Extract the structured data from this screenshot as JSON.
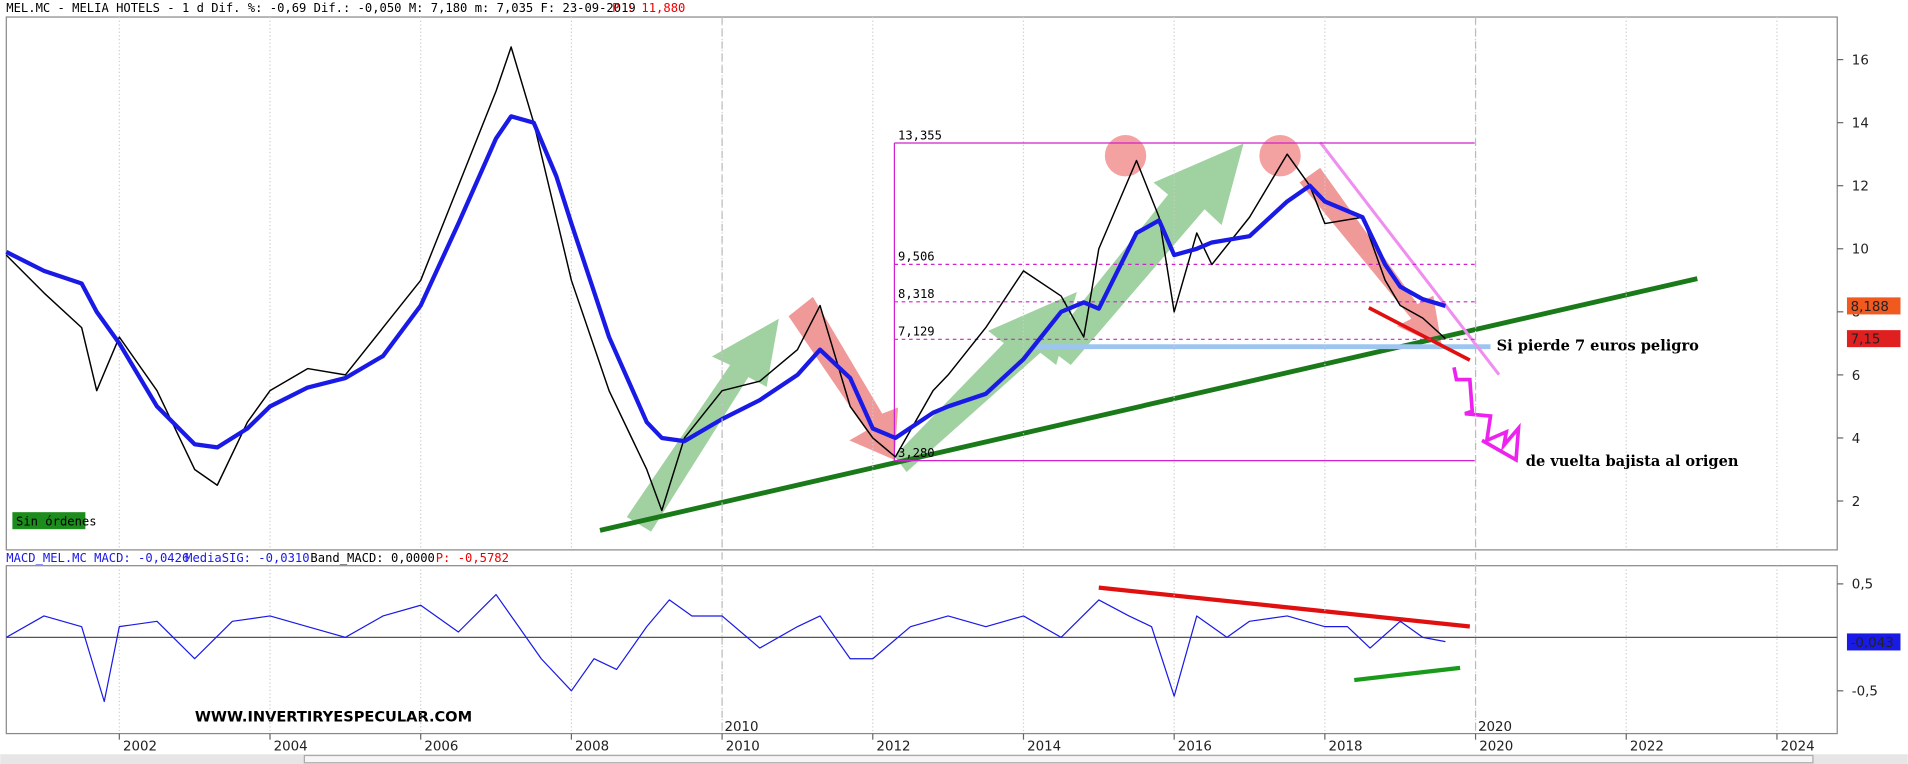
{
  "header": {
    "main": "MEL.MC - MELIA HOTELS - 1 d Dif. %: -0,69 Dif.: -0,050 M: 7,180 m: 7,035 F: 23-09-2019",
    "p": "P : 11,880",
    "macd": "MACD_MEL.MC MACD: -0,0426",
    "sig": "MediaSIG: -0,0310",
    "band": "Band_MACD: 0,0000",
    "macd_p": "P: -0,5782"
  },
  "annotations": {
    "loss": "Si pierde 7 euros peligro",
    "origin": "de vuelta bajista al origen",
    "orders": "Sin órdenes",
    "site": "WWW.INVERTIRYESPECULAR.COM"
  },
  "chart_data": [
    {
      "type": "line",
      "xlim": [
        2000.5,
        2024.8
      ],
      "ylim": [
        0.45,
        17.35
      ],
      "xticks": [
        2002,
        2004,
        2006,
        2008,
        2010,
        2012,
        2014,
        2016,
        2018,
        2020,
        2022,
        2024
      ],
      "yticks": [
        2,
        4,
        6,
        8,
        10,
        12,
        14,
        16
      ],
      "x": [
        2000.5,
        2001,
        2001.5,
        2001.7,
        2002,
        2002.5,
        2003,
        2003.3,
        2003.7,
        2004,
        2004.5,
        2005,
        2005.5,
        2006,
        2006.5,
        2007,
        2007.2,
        2007.5,
        2007.8,
        2008,
        2008.5,
        2009,
        2009.2,
        2009.5,
        2010,
        2010.5,
        2011,
        2011.3,
        2011.7,
        2012,
        2012.3,
        2012.8,
        2013,
        2013.5,
        2014,
        2014.5,
        2014.8,
        2015,
        2015.5,
        2015.8,
        2016,
        2016.3,
        2016.5,
        2017,
        2017.5,
        2017.8,
        2018,
        2018.5,
        2018.8,
        2019,
        2019.3,
        2019.6
      ],
      "series": [
        {
          "color": "#000000",
          "values": [
            9.8,
            8.6,
            7.5,
            5.5,
            7.2,
            5.5,
            3.0,
            2.5,
            4.5,
            5.5,
            6.2,
            6.0,
            7.5,
            9.0,
            12,
            15,
            16.4,
            14,
            11,
            9,
            5.5,
            3.0,
            1.7,
            4.0,
            5.5,
            5.8,
            6.8,
            8.2,
            5.0,
            4.0,
            3.4,
            5.5,
            6.0,
            7.5,
            9.3,
            8.5,
            7.2,
            10,
            12.8,
            11,
            8,
            10.5,
            9.5,
            11,
            13,
            12,
            10.8,
            11,
            9,
            8.2,
            7.8,
            7.15
          ]
        },
        {
          "color": "#1a1ae6",
          "values": [
            9.9,
            9.3,
            8.9,
            8.0,
            7.0,
            5.0,
            3.8,
            3.7,
            4.3,
            5.0,
            5.6,
            5.9,
            6.6,
            8.2,
            10.8,
            13.5,
            14.2,
            14.0,
            12.3,
            10.8,
            7.2,
            4.5,
            4.0,
            3.9,
            4.6,
            5.2,
            6.0,
            6.8,
            5.9,
            4.3,
            4.0,
            4.8,
            5.0,
            5.4,
            6.5,
            8.0,
            8.3,
            8.1,
            10.5,
            10.9,
            9.8,
            10.0,
            10.2,
            10.4,
            11.5,
            12.0,
            11.5,
            11.0,
            9.5,
            8.8,
            8.4,
            8.188
          ]
        }
      ],
      "levels": [
        {
          "value": 13.355,
          "label": "13,355"
        },
        {
          "value": 9.506,
          "label": "9,506"
        },
        {
          "value": 8.318,
          "label": "8,318"
        },
        {
          "value": 7.129,
          "label": "7,129"
        },
        {
          "value": 3.28,
          "label": "3,280"
        }
      ],
      "markers": [
        {
          "value": 8.188,
          "label": "8,188",
          "color": "#f05a1e"
        },
        {
          "value": 7.15,
          "label": "7,15",
          "color": "#e02020"
        }
      ]
    },
    {
      "type": "line",
      "xlim": [
        2000.5,
        2024.8
      ],
      "ylim": [
        -0.9,
        0.67
      ],
      "yticks": [
        {
          "value": 0.5,
          "label": "0,5"
        },
        {
          "value": -0.5,
          "label": "-0,5"
        }
      ],
      "period_labels": [
        2010,
        2020
      ],
      "x": [
        2000.5,
        2001,
        2001.5,
        2001.8,
        2002,
        2002.5,
        2003,
        2003.5,
        2004,
        2004.5,
        2005,
        2005.5,
        2006,
        2006.5,
        2007,
        2007.3,
        2007.6,
        2008,
        2008.3,
        2008.6,
        2009,
        2009.3,
        2009.6,
        2010,
        2010.5,
        2011,
        2011.3,
        2011.7,
        2012,
        2012.5,
        2013,
        2013.5,
        2014,
        2014.5,
        2015,
        2015.4,
        2015.7,
        2016,
        2016.3,
        2016.7,
        2017,
        2017.5,
        2018,
        2018.3,
        2018.6,
        2019,
        2019.3,
        2019.6
      ],
      "series": [
        {
          "color": "#1a1ae6",
          "values": [
            0.0,
            0.2,
            0.1,
            -0.6,
            0.1,
            0.15,
            -0.2,
            0.15,
            0.2,
            0.1,
            0.0,
            0.2,
            0.3,
            0.05,
            0.4,
            0.1,
            -0.2,
            -0.5,
            -0.2,
            -0.3,
            0.1,
            0.35,
            0.2,
            0.2,
            -0.1,
            0.1,
            0.2,
            -0.2,
            -0.2,
            0.1,
            0.2,
            0.1,
            0.2,
            0.0,
            0.35,
            0.2,
            0.1,
            -0.55,
            0.2,
            0.0,
            0.15,
            0.2,
            0.1,
            0.1,
            -0.1,
            0.15,
            0.0,
            -0.04
          ]
        }
      ],
      "markers": [
        {
          "value": -0.043,
          "label": "-0,043",
          "color": "#1a1ae6"
        }
      ]
    }
  ]
}
